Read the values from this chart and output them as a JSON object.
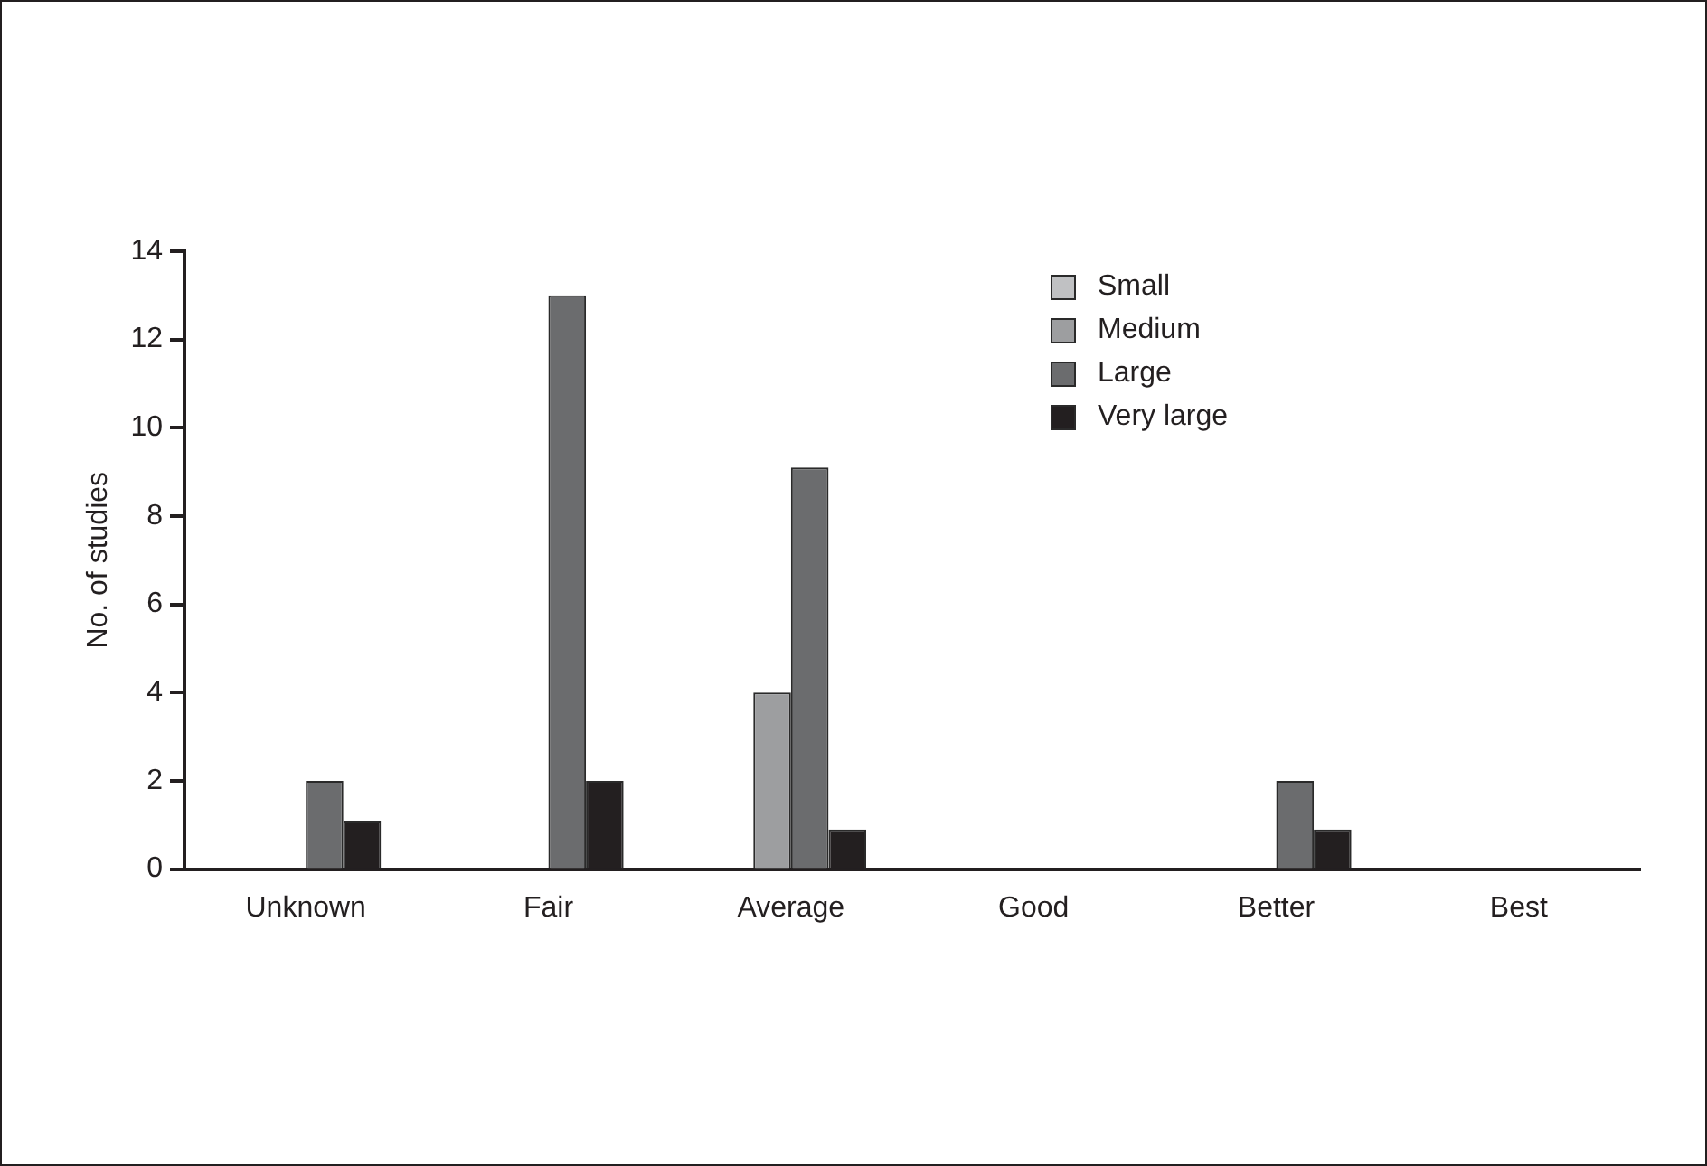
{
  "chart_data": {
    "type": "bar",
    "ylabel": "No. of studies",
    "categories": [
      "Unknown",
      "Fair",
      "Average",
      "Good",
      "Better",
      "Best"
    ],
    "series": [
      {
        "name": "Small",
        "color": "#c0c1c3",
        "values": [
          0,
          0,
          0,
          0,
          0,
          0
        ]
      },
      {
        "name": "Medium",
        "color": "#9d9ea0",
        "values": [
          0,
          0,
          4,
          0,
          0,
          0
        ]
      },
      {
        "name": "Large",
        "color": "#6b6c6e",
        "values": [
          2,
          13,
          9.1,
          0,
          2,
          0
        ]
      },
      {
        "name": "Very large",
        "color": "#231f20",
        "values": [
          1.1,
          2,
          0.9,
          0,
          0.9,
          0
        ]
      }
    ],
    "ylim": [
      0,
      14
    ],
    "yticks": [
      0,
      2,
      4,
      6,
      8,
      10,
      12,
      14
    ],
    "grid": false,
    "legend": "top right"
  }
}
